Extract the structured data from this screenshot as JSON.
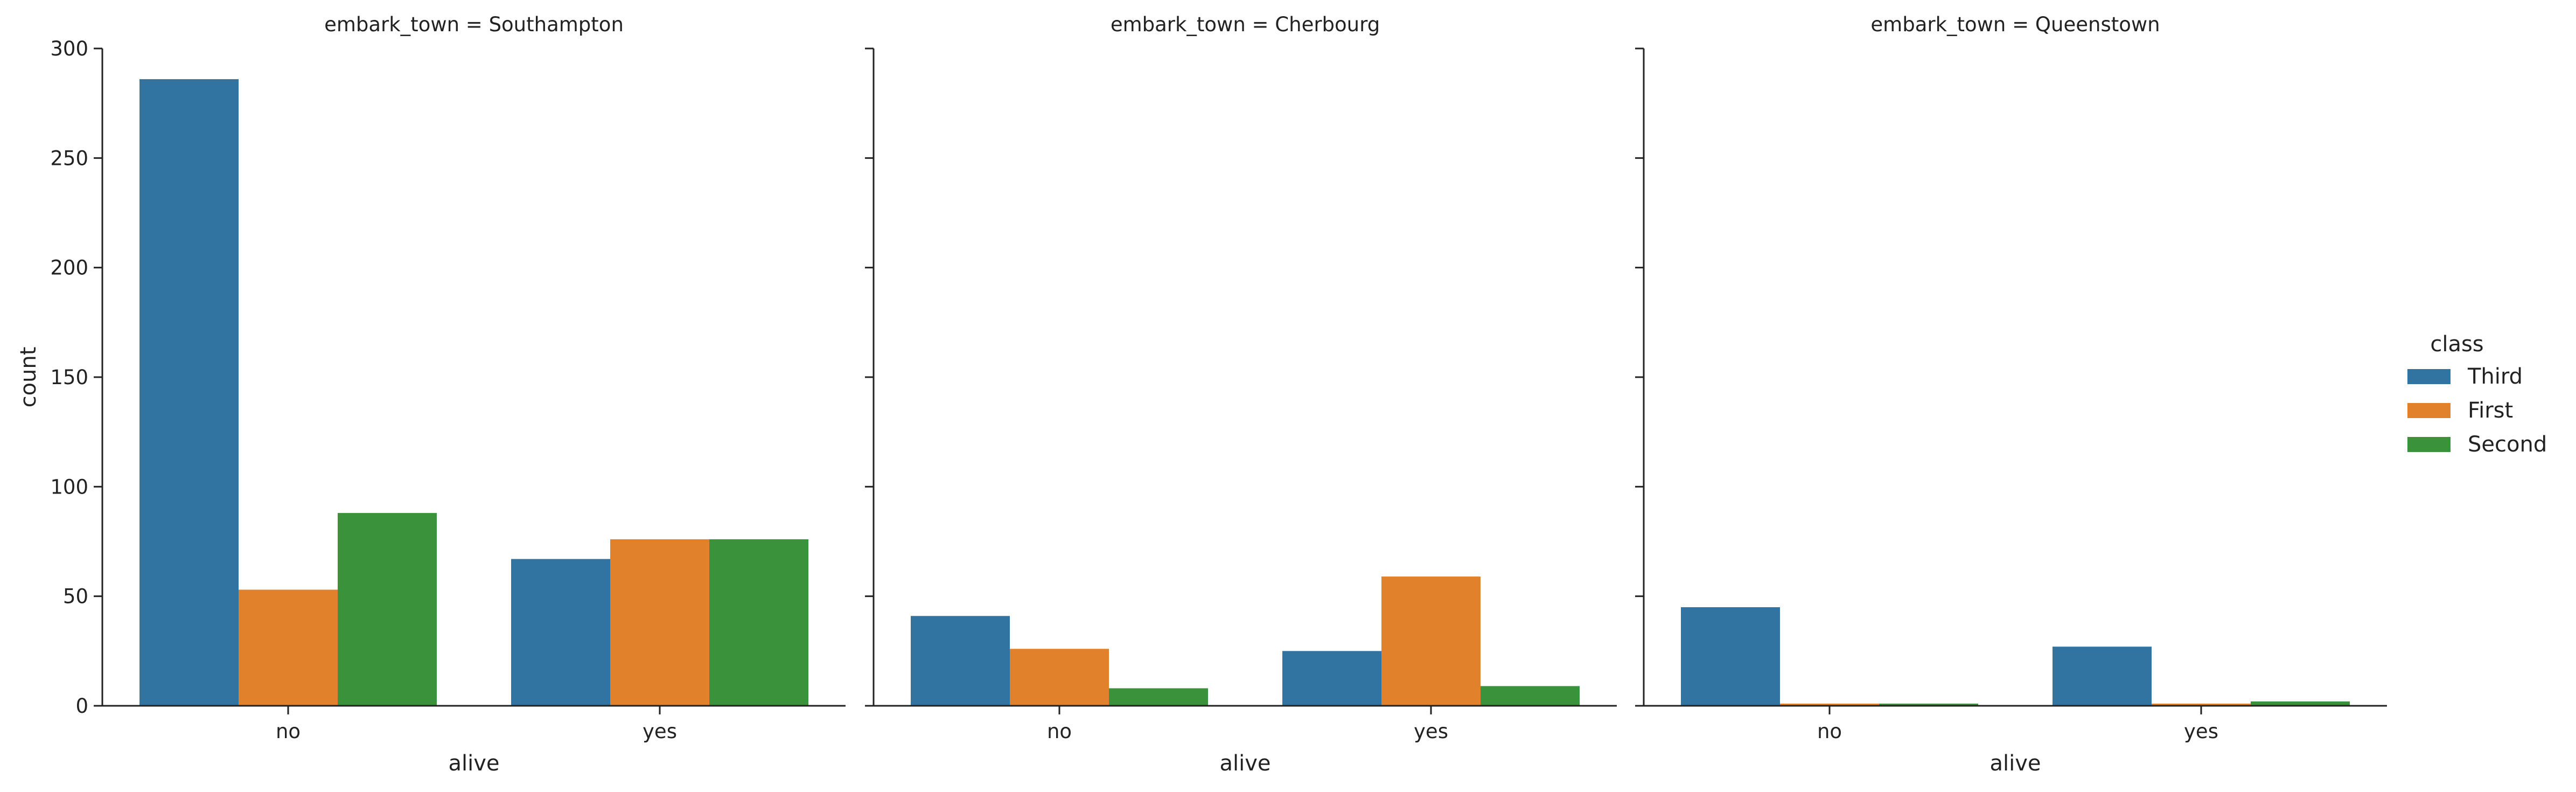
{
  "chart_data": {
    "type": "bar",
    "ylabel": "count",
    "xlabel": "alive",
    "categories": [
      "no",
      "yes"
    ],
    "ylim": [
      0,
      300
    ],
    "yticks": [
      0,
      50,
      100,
      150,
      200,
      250,
      300
    ],
    "legend": {
      "title": "class",
      "placement": "right",
      "entries": [
        "Third",
        "First",
        "Second"
      ]
    },
    "colors": {
      "Third": "#3274a1",
      "First": "#e1812c",
      "Second": "#3a923a"
    },
    "facets": [
      {
        "title": "embark_town = Southampton",
        "series": [
          {
            "name": "Third",
            "values": [
              286,
              67
            ]
          },
          {
            "name": "First",
            "values": [
              53,
              76
            ]
          },
          {
            "name": "Second",
            "values": [
              88,
              76
            ]
          }
        ]
      },
      {
        "title": "embark_town = Cherbourg",
        "series": [
          {
            "name": "Third",
            "values": [
              41,
              25
            ]
          },
          {
            "name": "First",
            "values": [
              26,
              59
            ]
          },
          {
            "name": "Second",
            "values": [
              8,
              9
            ]
          }
        ]
      },
      {
        "title": "embark_town = Queenstown",
        "series": [
          {
            "name": "Third",
            "values": [
              45,
              27
            ]
          },
          {
            "name": "First",
            "values": [
              1,
              1
            ]
          },
          {
            "name": "Second",
            "values": [
              1,
              2
            ]
          }
        ]
      }
    ],
    "grid": false
  }
}
